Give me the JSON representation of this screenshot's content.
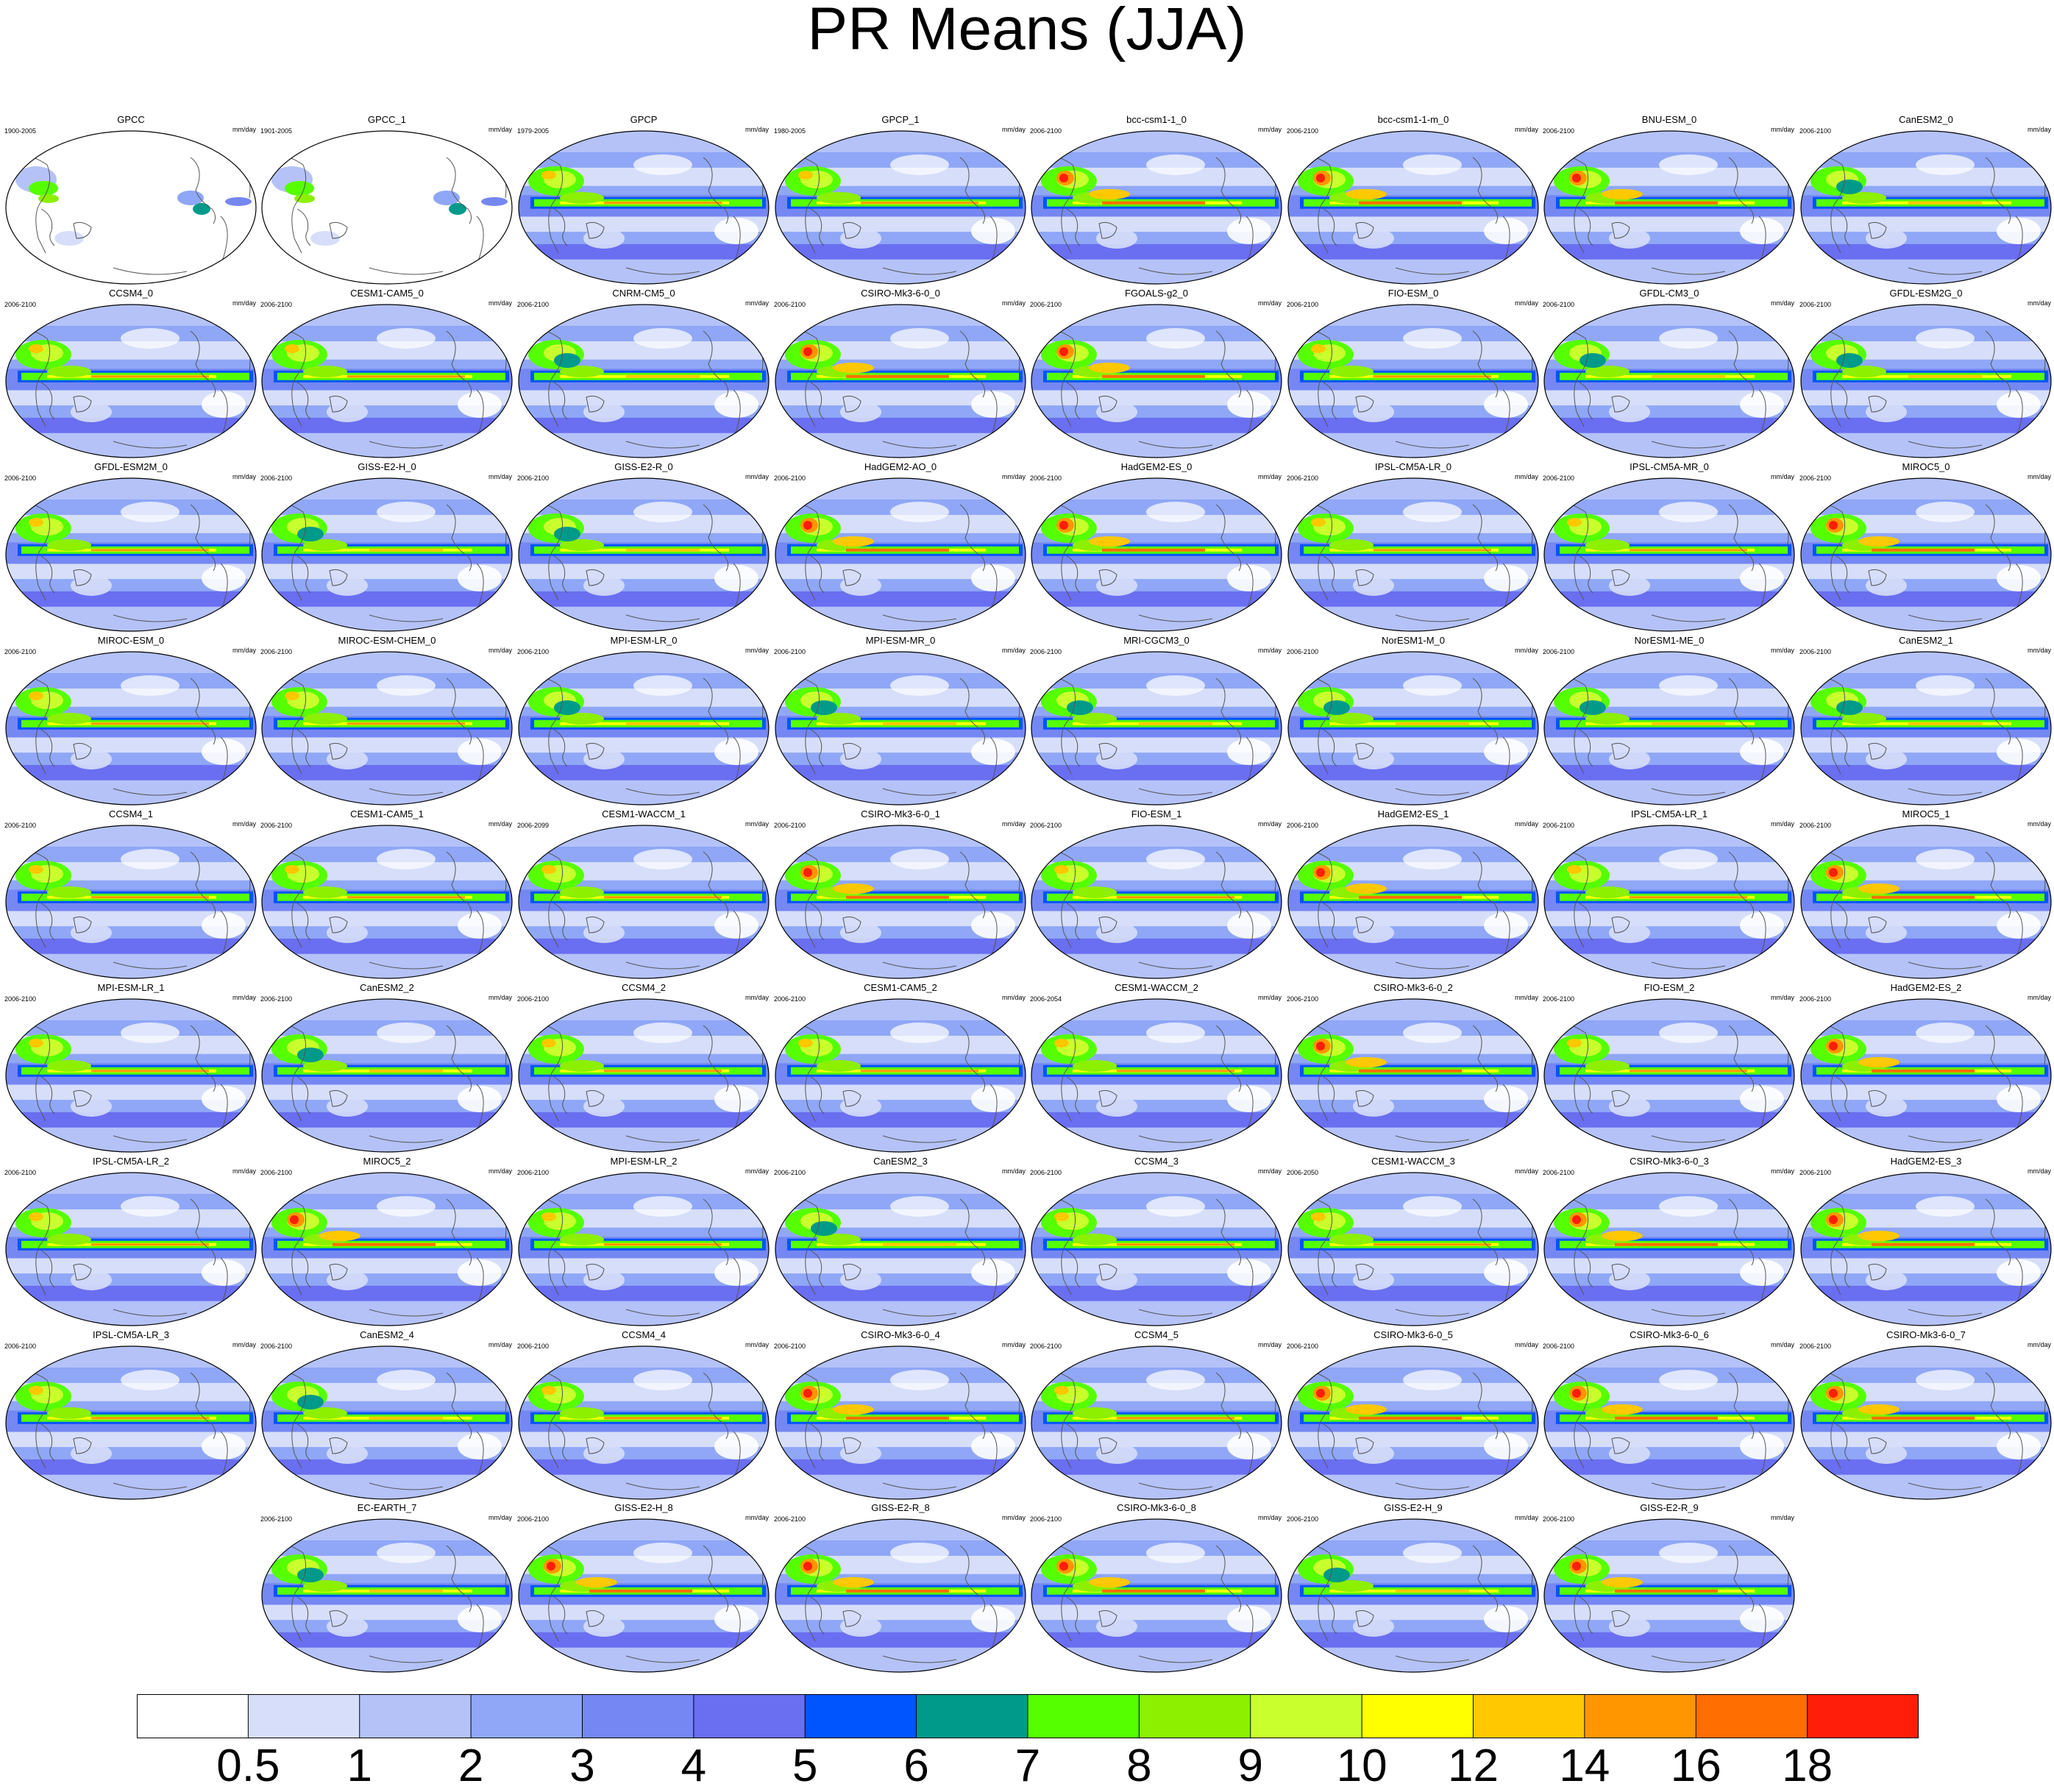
{
  "title": "PR Means (JJA)",
  "units": "mm/day",
  "panels": [
    {
      "name": "GPCC",
      "years": "1900-2005",
      "style": "obs-land"
    },
    {
      "name": "GPCC_1",
      "years": "1901-2005",
      "style": "obs-land"
    },
    {
      "name": "GPCP",
      "years": "1979-2005",
      "style": "obs"
    },
    {
      "name": "GPCP_1",
      "years": "1980-2005",
      "style": "obs"
    },
    {
      "name": "bcc-csm1-1_0",
      "years": "2006-2100",
      "style": "model-red"
    },
    {
      "name": "bcc-csm1-1-m_0",
      "years": "2006-2100",
      "style": "model-red"
    },
    {
      "name": "BNU-ESM_0",
      "years": "2006-2100",
      "style": "model-red"
    },
    {
      "name": "CanESM2_0",
      "years": "2006-2100",
      "style": "model-green"
    },
    {
      "name": "CCSM4_0",
      "years": "2006-2100",
      "style": "model"
    },
    {
      "name": "CESM1-CAM5_0",
      "years": "2006-2100",
      "style": "model"
    },
    {
      "name": "CNRM-CM5_0",
      "years": "2006-2100",
      "style": "model-green"
    },
    {
      "name": "CSIRO-Mk3-6-0_0",
      "years": "2006-2100",
      "style": "model-red"
    },
    {
      "name": "FGOALS-g2_0",
      "years": "2006-2100",
      "style": "model-red"
    },
    {
      "name": "FIO-ESM_0",
      "years": "2006-2100",
      "style": "model"
    },
    {
      "name": "GFDL-CM3_0",
      "years": "2006-2100",
      "style": "model-green"
    },
    {
      "name": "GFDL-ESM2G_0",
      "years": "2006-2100",
      "style": "model-green"
    },
    {
      "name": "GFDL-ESM2M_0",
      "years": "2006-2100",
      "style": "model"
    },
    {
      "name": "GISS-E2-H_0",
      "years": "2006-2100",
      "style": "model-green"
    },
    {
      "name": "GISS-E2-R_0",
      "years": "2006-2100",
      "style": "model-green"
    },
    {
      "name": "HadGEM2-AO_0",
      "years": "2006-2100",
      "style": "model-red"
    },
    {
      "name": "HadGEM2-ES_0",
      "years": "2006-2100",
      "style": "model-red"
    },
    {
      "name": "IPSL-CM5A-LR_0",
      "years": "2006-2100",
      "style": "model"
    },
    {
      "name": "IPSL-CM5A-MR_0",
      "years": "2006-2100",
      "style": "model"
    },
    {
      "name": "MIROC5_0",
      "years": "2006-2100",
      "style": "model-red"
    },
    {
      "name": "MIROC-ESM_0",
      "years": "2006-2100",
      "style": "model"
    },
    {
      "name": "MIROC-ESM-CHEM_0",
      "years": "2006-2100",
      "style": "model"
    },
    {
      "name": "MPI-ESM-LR_0",
      "years": "2006-2100",
      "style": "model-green"
    },
    {
      "name": "MPI-ESM-MR_0",
      "years": "2006-2100",
      "style": "model-green"
    },
    {
      "name": "MRI-CGCM3_0",
      "years": "2006-2100",
      "style": "model-green"
    },
    {
      "name": "NorESM1-M_0",
      "years": "2006-2100",
      "style": "model-green"
    },
    {
      "name": "NorESM1-ME_0",
      "years": "2006-2100",
      "style": "model-green"
    },
    {
      "name": "CanESM2_1",
      "years": "2006-2100",
      "style": "model-green"
    },
    {
      "name": "CCSM4_1",
      "years": "2006-2100",
      "style": "model"
    },
    {
      "name": "CESM1-CAM5_1",
      "years": "2006-2100",
      "style": "model"
    },
    {
      "name": "CESM1-WACCM_1",
      "years": "2006-2099",
      "style": "model"
    },
    {
      "name": "CSIRO-Mk3-6-0_1",
      "years": "2006-2100",
      "style": "model-red"
    },
    {
      "name": "FIO-ESM_1",
      "years": "2006-2100",
      "style": "model"
    },
    {
      "name": "HadGEM2-ES_1",
      "years": "2006-2100",
      "style": "model-red"
    },
    {
      "name": "IPSL-CM5A-LR_1",
      "years": "2006-2100",
      "style": "model"
    },
    {
      "name": "MIROC5_1",
      "years": "2006-2100",
      "style": "model-red"
    },
    {
      "name": "MPI-ESM-LR_1",
      "years": "2006-2100",
      "style": "model"
    },
    {
      "name": "CanESM2_2",
      "years": "2006-2100",
      "style": "model-green"
    },
    {
      "name": "CCSM4_2",
      "years": "2006-2100",
      "style": "model"
    },
    {
      "name": "CESM1-CAM5_2",
      "years": "2006-2100",
      "style": "model"
    },
    {
      "name": "CESM1-WACCM_2",
      "years": "2006-2054",
      "style": "model"
    },
    {
      "name": "CSIRO-Mk3-6-0_2",
      "years": "2006-2100",
      "style": "model-red"
    },
    {
      "name": "FIO-ESM_2",
      "years": "2006-2100",
      "style": "model"
    },
    {
      "name": "HadGEM2-ES_2",
      "years": "2006-2100",
      "style": "model-red"
    },
    {
      "name": "IPSL-CM5A-LR_2",
      "years": "2006-2100",
      "style": "model"
    },
    {
      "name": "MIROC5_2",
      "years": "2006-2100",
      "style": "model-red"
    },
    {
      "name": "MPI-ESM-LR_2",
      "years": "2006-2100",
      "style": "model"
    },
    {
      "name": "CanESM2_3",
      "years": "2006-2100",
      "style": "model-green"
    },
    {
      "name": "CCSM4_3",
      "years": "2006-2100",
      "style": "model"
    },
    {
      "name": "CESM1-WACCM_3",
      "years": "2006-2050",
      "style": "model"
    },
    {
      "name": "CSIRO-Mk3-6-0_3",
      "years": "2006-2100",
      "style": "model-red"
    },
    {
      "name": "HadGEM2-ES_3",
      "years": "2006-2100",
      "style": "model-red"
    },
    {
      "name": "IPSL-CM5A-LR_3",
      "years": "2006-2100",
      "style": "model"
    },
    {
      "name": "CanESM2_4",
      "years": "2006-2100",
      "style": "model-green"
    },
    {
      "name": "CCSM4_4",
      "years": "2006-2100",
      "style": "model"
    },
    {
      "name": "CSIRO-Mk3-6-0_4",
      "years": "2006-2100",
      "style": "model-red"
    },
    {
      "name": "CCSM4_5",
      "years": "2006-2100",
      "style": "model"
    },
    {
      "name": "CSIRO-Mk3-6-0_5",
      "years": "2006-2100",
      "style": "model-red"
    },
    {
      "name": "CSIRO-Mk3-6-0_6",
      "years": "2006-2100",
      "style": "model-red"
    },
    {
      "name": "CSIRO-Mk3-6-0_7",
      "years": "2006-2100",
      "style": "model-red"
    },
    {
      "name": "EC-EARTH_7",
      "years": "2006-2100",
      "style": "model-green"
    },
    {
      "name": "GISS-E2-H_8",
      "years": "2006-2100",
      "style": "model-red"
    },
    {
      "name": "GISS-E2-R_8",
      "years": "2006-2100",
      "style": "model-red"
    },
    {
      "name": "CSIRO-Mk3-6-0_8",
      "years": "2006-2100",
      "style": "model-red"
    },
    {
      "name": "GISS-E2-H_9",
      "years": "2006-2100",
      "style": "model-green"
    },
    {
      "name": "GISS-E2-R_9",
      "years": "2006-2100",
      "style": "model-red"
    }
  ],
  "colorbar": {
    "labels": [
      "0.5",
      "1",
      "2",
      "3",
      "4",
      "5",
      "6",
      "7",
      "8",
      "9",
      "10",
      "12",
      "14",
      "16",
      "18"
    ],
    "colors": [
      "#ffffff",
      "#d6defa",
      "#b4c2f8",
      "#8fa7f6",
      "#7587f2",
      "#6a6ef0",
      "#0055ff",
      "#009a8a",
      "#55ff00",
      "#8cf000",
      "#c8ff2d",
      "#ffff00",
      "#ffc800",
      "#ff9600",
      "#ff6e00",
      "#ff1e0a"
    ]
  }
}
